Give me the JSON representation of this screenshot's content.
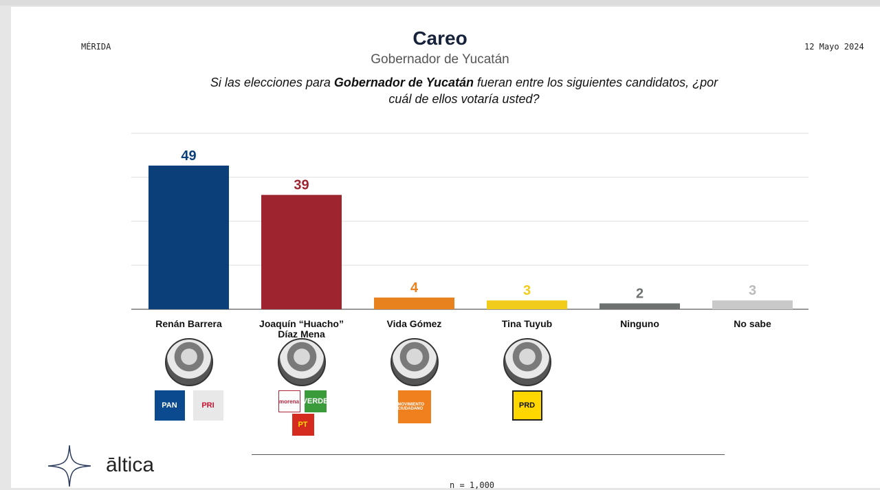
{
  "header": {
    "location": "MÉRIDA",
    "date": "12 Mayo 2024",
    "title": "Careo",
    "subtitle": "Gobernador de Yucatán",
    "question_pre": "Si las elecciones para ",
    "question_bold": "Gobernador de Yucatán",
    "question_post": " fueran entre los siguientes candidatos, ¿por cuál de ellos votaría usted?"
  },
  "chart_data": {
    "type": "bar",
    "title": "Careo",
    "subtitle": "Gobernador de Yucatán",
    "categories": [
      "Renán Barrera",
      "Joaquín “Huacho” Díaz Mena",
      "Vida Gómez",
      "Tina Tuyub",
      "Ninguno",
      "No sabe"
    ],
    "category_lines": [
      [
        "Renán Barrera"
      ],
      [
        "Joaquín “Huacho”",
        "Díaz Mena"
      ],
      [
        "Vida Gómez"
      ],
      [
        "Tina Tuyub"
      ],
      [
        "Ninguno"
      ],
      [
        "No sabe"
      ]
    ],
    "values": [
      49,
      39,
      4,
      3,
      2,
      3
    ],
    "colors": [
      "#0b3f7a",
      "#9e2430",
      "#e8821e",
      "#f2cc1a",
      "#6d716f",
      "#c9c9c9"
    ],
    "ylim": [
      0,
      60
    ],
    "grid": true,
    "data_labels": true
  },
  "parties": [
    [
      {
        "label": "PAN",
        "bg": "#0b4a8f",
        "fg": "#fff"
      },
      {
        "label": "PRI",
        "bg": "#e8e8e8",
        "fg": "#c8102e"
      }
    ],
    [
      {
        "label": "morena",
        "bg": "#fff",
        "fg": "#b0223a"
      },
      {
        "label": "VERDE",
        "bg": "#3a9b3a",
        "fg": "#fff"
      },
      {
        "label": "PT",
        "bg": "#d52b1e",
        "fg": "#ffd800"
      }
    ],
    [
      {
        "label": "MOVIMIENTO CIUDADANO",
        "bg": "#f07f1d",
        "fg": "#fff"
      }
    ],
    [
      {
        "label": "PRD",
        "bg": "#ffd700",
        "fg": "#111"
      }
    ]
  ],
  "footer": {
    "brand": "āltica",
    "sample": "n = 1,000"
  }
}
